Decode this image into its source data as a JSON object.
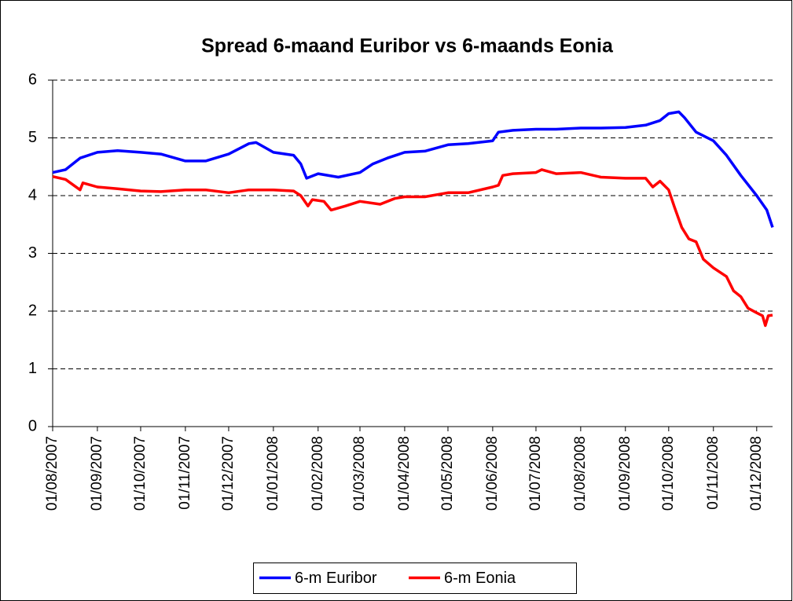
{
  "chart_data": {
    "type": "line",
    "title": "Spread 6-maand Euribor vs 6-maands Eonia",
    "xlim": [
      "01/08/2007",
      "12/12/2008"
    ],
    "xticks": [
      "01/08/2007",
      "01/09/2007",
      "01/10/2007",
      "01/11/2007",
      "01/12/2007",
      "01/01/2008",
      "01/02/2008",
      "01/03/2008",
      "01/04/2008",
      "01/05/2008",
      "01/06/2008",
      "01/07/2008",
      "01/08/2008",
      "01/09/2008",
      "01/10/2008",
      "01/11/2008",
      "01/12/2008"
    ],
    "ylim": [
      0,
      6
    ],
    "yticks": [
      0,
      1,
      2,
      3,
      4,
      5,
      6
    ],
    "grid": true,
    "legend": "bottom",
    "series": [
      {
        "name": "6-m Euribor",
        "color": "#0000ff",
        "x": [
          "01/08/2007",
          "10/08/2007",
          "20/08/2007",
          "01/09/2007",
          "15/09/2007",
          "01/10/2007",
          "15/10/2007",
          "01/11/2007",
          "15/11/2007",
          "01/12/2007",
          "15/12/2007",
          "20/12/2007",
          "01/01/2008",
          "15/01/2008",
          "20/01/2008",
          "24/01/2008",
          "01/02/2008",
          "15/02/2008",
          "01/03/2008",
          "10/03/2008",
          "20/03/2008",
          "01/04/2008",
          "15/04/2008",
          "01/05/2008",
          "15/05/2008",
          "01/06/2008",
          "05/06/2008",
          "15/06/2008",
          "01/07/2008",
          "15/07/2008",
          "01/08/2008",
          "15/08/2008",
          "01/09/2008",
          "15/09/2008",
          "25/09/2008",
          "01/10/2008",
          "08/10/2008",
          "12/10/2008",
          "20/10/2008",
          "01/11/2008",
          "10/11/2008",
          "20/11/2008",
          "01/12/2008",
          "08/12/2008",
          "12/12/2008"
        ],
        "values": [
          4.4,
          4.45,
          4.65,
          4.75,
          4.78,
          4.75,
          4.72,
          4.6,
          4.6,
          4.72,
          4.9,
          4.92,
          4.75,
          4.7,
          4.55,
          4.3,
          4.38,
          4.32,
          4.4,
          4.55,
          4.65,
          4.75,
          4.77,
          4.88,
          4.9,
          4.95,
          5.1,
          5.13,
          5.15,
          5.15,
          5.17,
          5.17,
          5.18,
          5.22,
          5.3,
          5.42,
          5.45,
          5.35,
          5.1,
          4.95,
          4.7,
          4.35,
          4.0,
          3.75,
          3.45
        ]
      },
      {
        "name": "6-m Eonia",
        "color": "#ff0000",
        "x": [
          "01/08/2007",
          "10/08/2007",
          "20/08/2007",
          "22/08/2007",
          "01/09/2007",
          "15/09/2007",
          "01/10/2007",
          "15/10/2007",
          "01/11/2007",
          "15/11/2007",
          "01/12/2007",
          "15/12/2007",
          "01/01/2008",
          "15/01/2008",
          "20/01/2008",
          "25/01/2008",
          "28/01/2008",
          "05/02/2008",
          "10/02/2008",
          "20/02/2008",
          "01/03/2008",
          "15/03/2008",
          "25/03/2008",
          "01/04/2008",
          "15/04/2008",
          "01/05/2008",
          "15/05/2008",
          "01/06/2008",
          "05/06/2008",
          "08/06/2008",
          "15/06/2008",
          "01/07/2008",
          "05/07/2008",
          "15/07/2008",
          "01/08/2008",
          "15/08/2008",
          "01/09/2008",
          "15/09/2008",
          "20/09/2008",
          "25/09/2008",
          "01/10/2008",
          "05/10/2008",
          "10/10/2008",
          "15/10/2008",
          "20/10/2008",
          "25/10/2008",
          "01/11/2008",
          "10/11/2008",
          "15/11/2008",
          "20/11/2008",
          "25/11/2008",
          "01/12/2008",
          "05/12/2008",
          "07/12/2008",
          "09/12/2008",
          "12/12/2008"
        ],
        "values": [
          4.33,
          4.28,
          4.1,
          4.22,
          4.15,
          4.12,
          4.08,
          4.07,
          4.1,
          4.1,
          4.05,
          4.1,
          4.1,
          4.08,
          4.0,
          3.82,
          3.93,
          3.9,
          3.75,
          3.82,
          3.9,
          3.85,
          3.95,
          3.98,
          3.98,
          4.05,
          4.05,
          4.15,
          4.18,
          4.35,
          4.38,
          4.4,
          4.45,
          4.38,
          4.4,
          4.32,
          4.3,
          4.3,
          4.15,
          4.25,
          4.1,
          3.8,
          3.45,
          3.25,
          3.2,
          2.9,
          2.75,
          2.6,
          2.35,
          2.25,
          2.05,
          1.97,
          1.92,
          1.75,
          1.92,
          1.93
        ]
      }
    ]
  }
}
